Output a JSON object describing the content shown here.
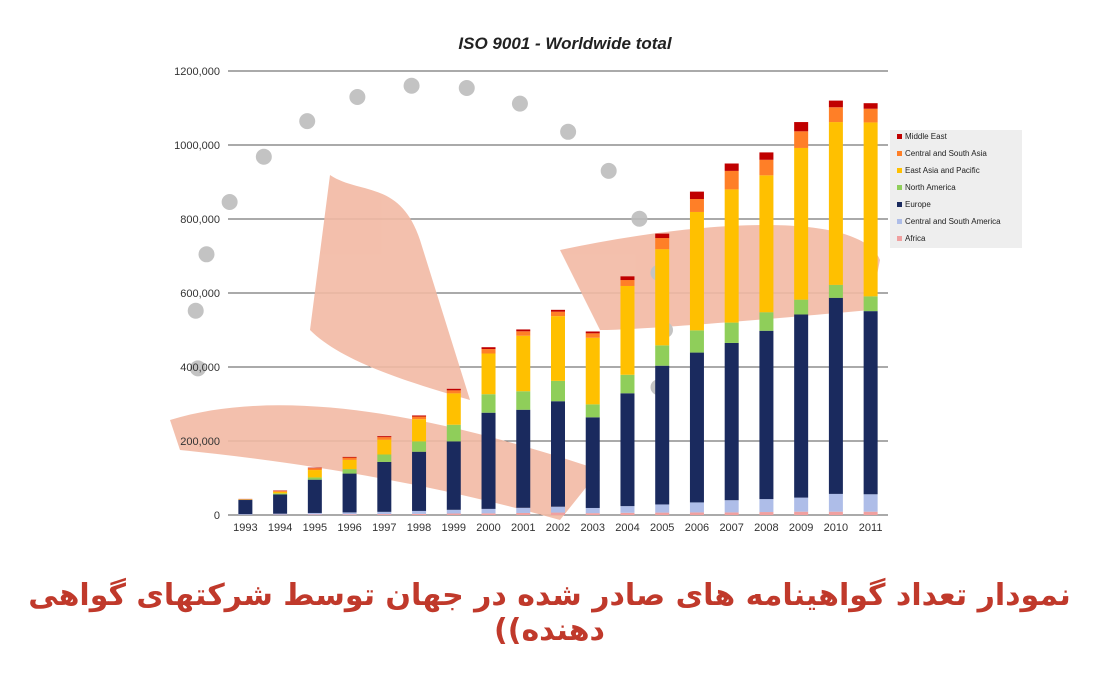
{
  "caption": {
    "text": "نمودار تعداد گواهینامه های صادر شده در جهان توسط شرکتهای گواهی دهنده))",
    "color": "#c0392b"
  },
  "watermark": {
    "colors": {
      "letters": "#f2b9a4",
      "dots": "#bdbdbd"
    }
  },
  "chart_data": {
    "type": "bar",
    "stacked": true,
    "title": "ISO 9001 - Worldwide total",
    "xlabel": "",
    "ylabel": "",
    "ylim": [
      0,
      1200000
    ],
    "yticks": [
      0,
      200000,
      400000,
      600000,
      800000,
      1000000,
      1200000
    ],
    "ytick_labels": [
      "0",
      "200,000",
      "400,000",
      "600,000",
      "800,000",
      "1000,000",
      "1200,000"
    ],
    "grid": true,
    "legend_position": "right",
    "categories": [
      "1993",
      "1994",
      "1995",
      "1996",
      "1997",
      "1998",
      "1999",
      "2000",
      "2001",
      "2002",
      "2003",
      "2004",
      "2005",
      "2006",
      "2007",
      "2008",
      "2009",
      "2010",
      "2011"
    ],
    "series": [
      {
        "name": "Africa",
        "color": "#f0a0a0",
        "values": [
          500,
          1000,
          1500,
          2000,
          2500,
          3000,
          4000,
          4500,
          5500,
          6500,
          5000,
          6000,
          6500,
          7000,
          7000,
          8000,
          9000,
          9000,
          9000
        ]
      },
      {
        "name": "Central and South America",
        "color": "#aebde8",
        "values": [
          2000,
          2500,
          4000,
          5000,
          6000,
          8000,
          10000,
          12000,
          14000,
          16000,
          14000,
          18000,
          22000,
          27000,
          33000,
          35000,
          38000,
          48000,
          47000
        ]
      },
      {
        "name": "Europe",
        "color": "#1a2a5e",
        "values": [
          38000,
          52000,
          90000,
          105000,
          135000,
          160000,
          185000,
          260000,
          265000,
          285000,
          245000,
          305000,
          375000,
          405000,
          425000,
          455000,
          495000,
          530000,
          495000
        ]
      },
      {
        "name": "North America",
        "color": "#8fce5a",
        "values": [
          1000,
          3000,
          6000,
          12000,
          20000,
          28000,
          45000,
          50000,
          50000,
          55000,
          35000,
          50000,
          55000,
          60000,
          55000,
          50000,
          40000,
          35000,
          40000
        ]
      },
      {
        "name": "East Asia and Pacific",
        "color": "#ffc000",
        "values": [
          0,
          4000,
          20000,
          25000,
          40000,
          60000,
          85000,
          110000,
          150000,
          175000,
          180000,
          240000,
          260000,
          320000,
          360000,
          370000,
          410000,
          440000,
          470000
        ]
      },
      {
        "name": "Central and South Asia",
        "color": "#ff7f27",
        "values": [
          1500,
          3000,
          5000,
          6000,
          7000,
          7000,
          8000,
          12000,
          12000,
          12000,
          12000,
          16000,
          30000,
          35000,
          50000,
          42000,
          45000,
          40000,
          37000
        ]
      },
      {
        "name": "Middle East",
        "color": "#c00000",
        "values": [
          500,
          1000,
          1500,
          2000,
          2500,
          3000,
          4000,
          5000,
          5000,
          5000,
          5000,
          10000,
          12000,
          20000,
          20000,
          20000,
          25000,
          18000,
          15000
        ]
      }
    ]
  }
}
